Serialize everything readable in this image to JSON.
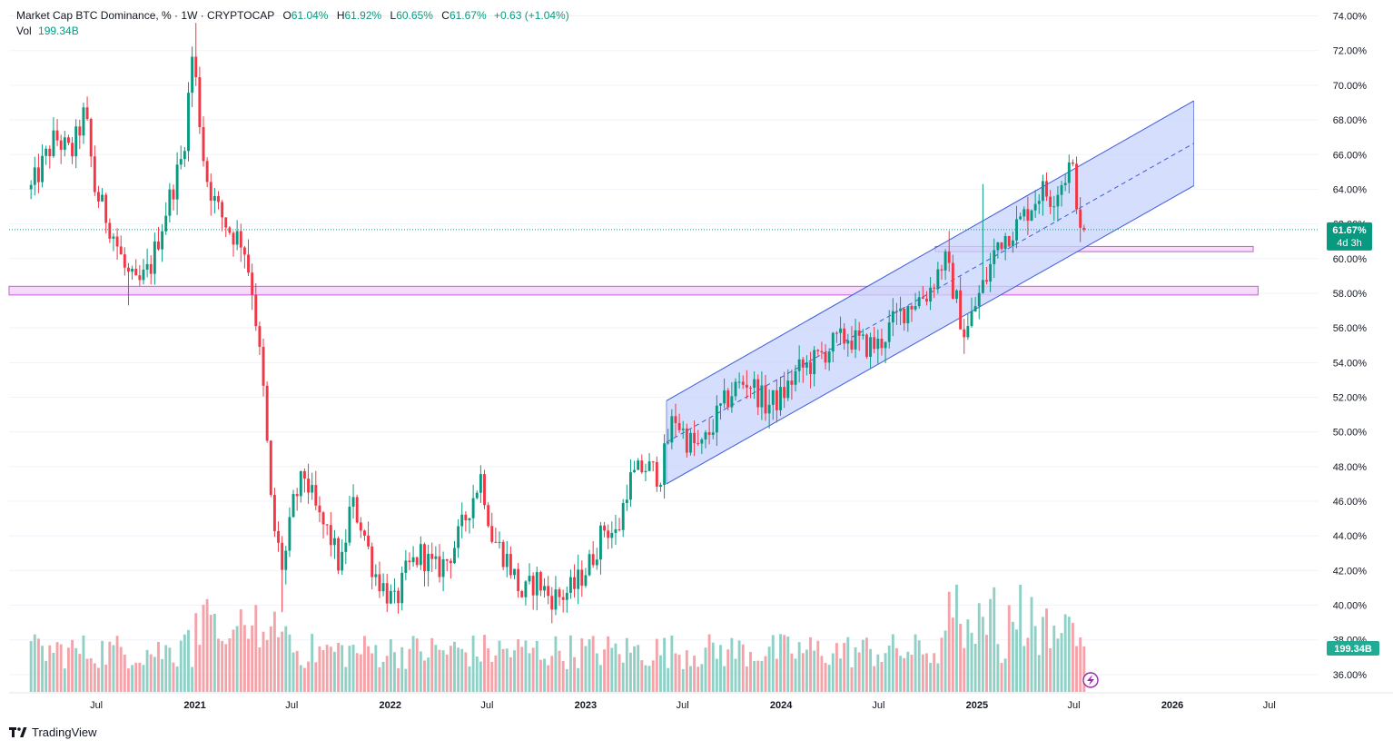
{
  "header": {
    "symbol": "Market Cap BTC Dominance, % · 1W · CRYPTOCAP",
    "o_label": "O",
    "o_value": "61.04%",
    "h_label": "H",
    "h_value": "61.92%",
    "l_label": "L",
    "l_value": "60.65%",
    "c_label": "C",
    "c_value": "61.67%",
    "change": "+0.63 (+1.04%)",
    "vol_label": "Vol",
    "vol_value": "199.34B"
  },
  "price_badge": {
    "price": "61.67%",
    "countdown": "4d 3h"
  },
  "volume_badge": "199.34B",
  "brand": "TradingView",
  "colors": {
    "up": "#089981",
    "down": "#f23645",
    "up_vol": "#8fd1c6",
    "down_vol": "#f4a3a9",
    "channel_fill": "#c7d3fb",
    "channel_line": "#3b5bdb",
    "zone": "#e59af0"
  },
  "chart_data": {
    "type": "candlestick",
    "interval": "1W",
    "y_unit": "%",
    "ylim": [
      35,
      74.5
    ],
    "y_ticks": [
      "74.00%",
      "72.00%",
      "70.00%",
      "68.00%",
      "66.00%",
      "64.00%",
      "62.00%",
      "60.00%",
      "58.00%",
      "56.00%",
      "54.00%",
      "52.00%",
      "50.00%",
      "48.00%",
      "46.00%",
      "44.00%",
      "42.00%",
      "40.00%",
      "38.00%",
      "36.00%"
    ],
    "x_ticks": [
      {
        "label": "Jul",
        "bold": false
      },
      {
        "label": "2021",
        "bold": true
      },
      {
        "label": "Jul",
        "bold": false
      },
      {
        "label": "2022",
        "bold": true
      },
      {
        "label": "Jul",
        "bold": false
      },
      {
        "label": "2023",
        "bold": true
      },
      {
        "label": "Jul",
        "bold": false
      },
      {
        "label": "2024",
        "bold": true
      },
      {
        "label": "Jul",
        "bold": false
      },
      {
        "label": "2025",
        "bold": true
      },
      {
        "label": "Jul",
        "bold": false
      },
      {
        "label": "2026",
        "bold": true
      },
      {
        "label": "Jul",
        "bold": false
      }
    ],
    "anchors": [
      [
        "2020-03-01",
        64.0
      ],
      [
        "2020-04-15",
        67.0
      ],
      [
        "2020-05-15",
        66.0
      ],
      [
        "2020-06-10",
        68.5
      ],
      [
        "2020-06-28",
        64.0
      ],
      [
        "2020-08-01",
        61.5
      ],
      [
        "2020-08-25",
        59.2
      ],
      [
        "2020-09-15",
        58.3
      ],
      [
        "2020-10-10",
        59.5
      ],
      [
        "2020-11-10",
        63.0
      ],
      [
        "2020-12-10",
        66.0
      ],
      [
        "2020-12-28",
        72.0
      ],
      [
        "2021-01-20",
        65.0
      ],
      [
        "2021-02-10",
        63.0
      ],
      [
        "2021-03-10",
        61.5
      ],
      [
        "2021-04-01",
        61.0
      ],
      [
        "2021-04-20",
        58.0
      ],
      [
        "2021-05-10",
        52.0
      ],
      [
        "2021-05-25",
        45.0
      ],
      [
        "2021-06-15",
        42.0
      ],
      [
        "2021-07-05",
        46.0
      ],
      [
        "2021-07-25",
        47.5
      ],
      [
        "2021-08-20",
        45.0
      ],
      [
        "2021-09-10",
        44.0
      ],
      [
        "2021-10-01",
        42.0
      ],
      [
        "2021-10-20",
        46.0
      ],
      [
        "2021-11-10",
        44.5
      ],
      [
        "2021-12-01",
        42.0
      ],
      [
        "2021-12-20",
        41.0
      ],
      [
        "2022-01-10",
        40.0
      ],
      [
        "2022-02-01",
        42.0
      ],
      [
        "2022-02-28",
        43.0
      ],
      [
        "2022-03-25",
        42.0
      ],
      [
        "2022-04-15",
        42.5
      ],
      [
        "2022-05-10",
        44.0
      ],
      [
        "2022-06-01",
        46.0
      ],
      [
        "2022-06-20",
        47.5
      ],
      [
        "2022-07-10",
        44.0
      ],
      [
        "2022-08-10",
        42.5
      ],
      [
        "2022-09-05",
        40.5
      ],
      [
        "2022-10-01",
        41.5
      ],
      [
        "2022-10-25",
        40.5
      ],
      [
        "2022-11-15",
        40.5
      ],
      [
        "2022-12-10",
        41.0
      ],
      [
        "2023-01-10",
        42.5
      ],
      [
        "2023-02-05",
        44.5
      ],
      [
        "2023-03-01",
        44.0
      ],
      [
        "2023-03-20",
        47.0
      ],
      [
        "2023-04-20",
        48.0
      ],
      [
        "2023-05-20",
        47.5
      ],
      [
        "2023-06-15",
        51.0
      ],
      [
        "2023-07-10",
        49.5
      ],
      [
        "2023-08-05",
        49.0
      ],
      [
        "2023-09-05",
        51.0
      ],
      [
        "2023-10-05",
        52.5
      ],
      [
        "2023-11-01",
        53.0
      ],
      [
        "2023-12-05",
        51.5
      ],
      [
        "2024-01-01",
        52.0
      ],
      [
        "2024-02-01",
        53.5
      ],
      [
        "2024-03-01",
        54.0
      ],
      [
        "2024-04-05",
        55.0
      ],
      [
        "2024-05-05",
        55.5
      ],
      [
        "2024-06-01",
        55.0
      ],
      [
        "2024-07-01",
        55.0
      ],
      [
        "2024-08-01",
        56.5
      ],
      [
        "2024-09-01",
        57.5
      ],
      [
        "2024-10-01",
        58.0
      ],
      [
        "2024-11-01",
        60.0
      ],
      [
        "2024-11-20",
        58.0
      ],
      [
        "2024-12-10",
        55.5
      ],
      [
        "2024-12-31",
        57.5
      ],
      [
        "2025-01-20",
        59.0
      ],
      [
        "2025-02-10",
        61.0
      ],
      [
        "2025-03-01",
        61.5
      ],
      [
        "2025-03-20",
        62.0
      ],
      [
        "2025-04-10",
        63.0
      ],
      [
        "2025-05-01",
        64.0
      ],
      [
        "2025-05-20",
        63.5
      ],
      [
        "2025-06-10",
        64.5
      ],
      [
        "2025-06-25",
        65.5
      ],
      [
        "2025-07-05",
        64.0
      ],
      [
        "2025-07-12",
        61.0
      ],
      [
        "2025-07-20",
        61.67
      ]
    ],
    "last_close": 61.67,
    "channel": {
      "start": "2023-06-01",
      "end": "2026-02-10",
      "lower_start": 47.0,
      "lower_end": 64.2,
      "upper_start": 51.8,
      "upper_end": 69.1
    },
    "zones": [
      {
        "start": "2020-01-20",
        "end": "2026-06-10",
        "low": 57.9,
        "high": 58.4
      },
      {
        "start": "2024-10-15",
        "end": "2026-06-01",
        "low": 60.4,
        "high": 60.7
      }
    ]
  }
}
